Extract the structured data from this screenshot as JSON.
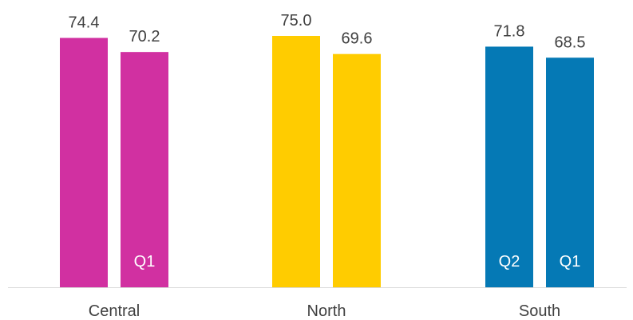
{
  "chart_data": {
    "type": "bar",
    "title": "",
    "xlabel": "",
    "ylabel": "",
    "ylim": [
      0,
      75
    ],
    "grid": false,
    "legend": "none",
    "categories": [
      "Central",
      "North",
      "South"
    ],
    "groups": [
      {
        "category": "Central",
        "color": "#D130A1",
        "bars": [
          {
            "label": "",
            "value": 74.4,
            "value_text": "74.4"
          },
          {
            "label": "Q1",
            "value": 70.2,
            "value_text": "70.2"
          }
        ]
      },
      {
        "category": "North",
        "color": "#FFCC00",
        "bars": [
          {
            "label": "",
            "value": 75.0,
            "value_text": "75.0"
          },
          {
            "label": "",
            "value": 69.6,
            "value_text": "69.6"
          }
        ]
      },
      {
        "category": "South",
        "color": "#0579B5",
        "bars": [
          {
            "label": "Q2",
            "value": 71.8,
            "value_text": "71.8"
          },
          {
            "label": "Q1",
            "value": 68.5,
            "value_text": "68.5"
          }
        ]
      }
    ],
    "axis_color": "#D9D9D9"
  }
}
